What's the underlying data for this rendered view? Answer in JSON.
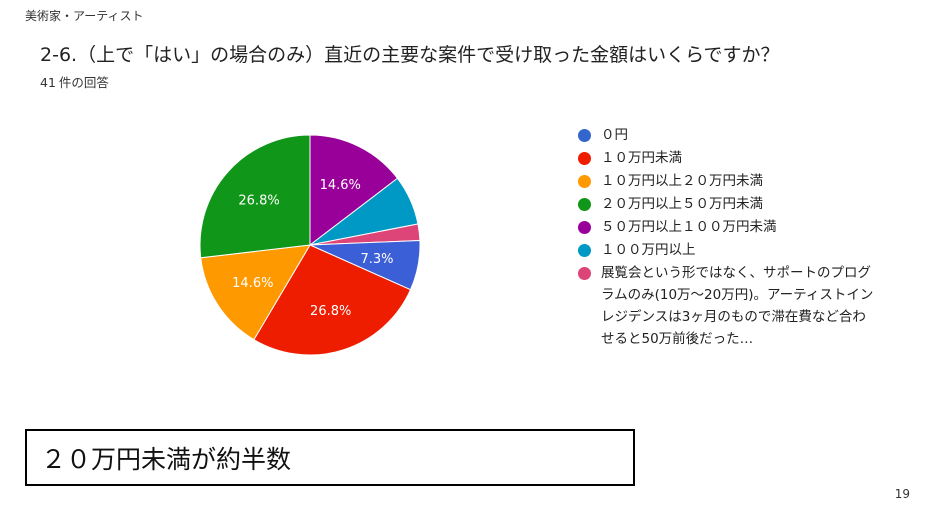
{
  "header": {
    "category": "美術家・アーティスト"
  },
  "question": "2-6.（上で「はい」の場合のみ）直近の主要な案件で受け取った金額はいくらですか？",
  "responses": {
    "count": "41",
    "label": "件の回答"
  },
  "summary": "２０万円未満が約半数",
  "page_number": "19",
  "chart_data": {
    "type": "pie",
    "start_angle_deg": 90,
    "direction": "clockwise",
    "slices": [
      {
        "label": "０円",
        "value": 0,
        "color": "#3366cc",
        "display": ""
      },
      {
        "label": "１０万円未満",
        "value": 26.8,
        "color": "#ee1d00",
        "display": "26.8%"
      },
      {
        "label": "１０万円以上２０万円未満",
        "value": 14.6,
        "color": "#ff9900",
        "display": "14.6%"
      },
      {
        "label": "２０万円以上５０万円未満",
        "value": 26.8,
        "color": "#109618",
        "display": "26.8%"
      },
      {
        "label": "５０万円以上１００万円未満",
        "value": 14.6,
        "color": "#990099",
        "display": "14.6%"
      },
      {
        "label": "１００万円以上",
        "value": 7.3,
        "color": "#0099c6",
        "display": ""
      },
      {
        "label": "展覧会という形ではなく、サポートのプログラムのみ(10万〜20万円)。アーティストインレジデンスは3ヶ月のもので滞在費など合わせると50万前後だった…",
        "value": 2.4,
        "color": "#dd4477",
        "display": ""
      },
      {
        "label": "",
        "value": 7.3,
        "color": "#3b5fd6",
        "display": "7.3%"
      }
    ]
  }
}
